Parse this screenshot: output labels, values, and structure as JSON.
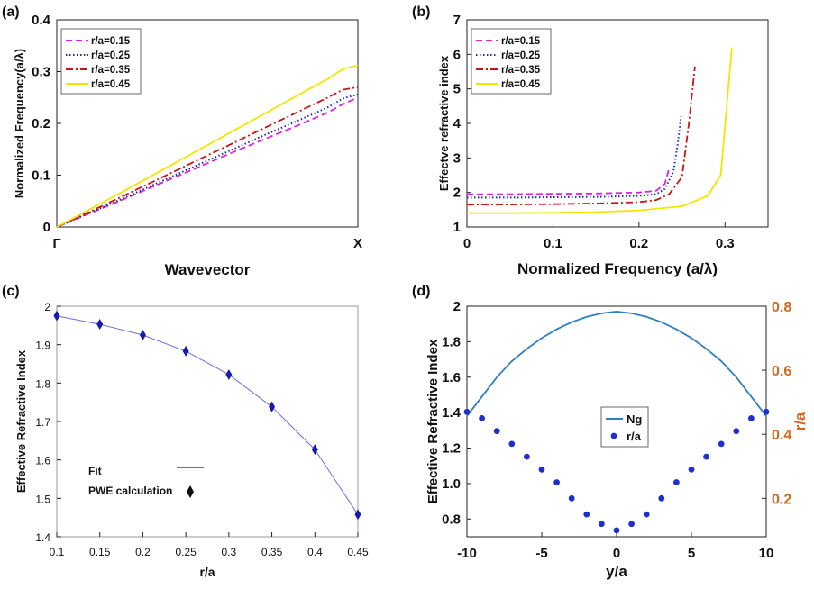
{
  "chart_data": [
    {
      "panel_label": "(a)",
      "type": "line",
      "xlabel": "Wavevector",
      "ylabel": "Normalized Frequency(a/λ)",
      "xlim": [
        0,
        1
      ],
      "ylim": [
        0,
        0.4
      ],
      "x_tick_labels": [
        "Γ",
        "X"
      ],
      "y_ticks": [
        "0",
        "0.1",
        "0.2",
        "0.3",
        "0.4"
      ],
      "legend_position": "top-left",
      "series": [
        {
          "name": "r/a=0.15",
          "color": "#e020e0",
          "style": "dashed",
          "x": [
            0,
            0.1,
            0.2,
            0.3,
            0.4,
            0.5,
            0.6,
            0.7,
            0.8,
            0.9,
            0.95,
            1.0
          ],
          "y": [
            0,
            0.024,
            0.048,
            0.073,
            0.098,
            0.123,
            0.148,
            0.172,
            0.196,
            0.221,
            0.237,
            0.25
          ]
        },
        {
          "name": "r/a=0.25",
          "color": "#1c2fa8",
          "style": "dotted",
          "x": [
            0,
            0.1,
            0.2,
            0.3,
            0.4,
            0.5,
            0.6,
            0.7,
            0.8,
            0.9,
            0.95,
            1.0
          ],
          "y": [
            0,
            0.025,
            0.05,
            0.076,
            0.102,
            0.128,
            0.154,
            0.18,
            0.205,
            0.231,
            0.248,
            0.256
          ]
        },
        {
          "name": "r/a=0.35",
          "color": "#cc1414",
          "style": "dashdot",
          "x": [
            0,
            0.1,
            0.2,
            0.3,
            0.4,
            0.5,
            0.6,
            0.7,
            0.8,
            0.9,
            0.95,
            1.0
          ],
          "y": [
            0,
            0.027,
            0.054,
            0.082,
            0.11,
            0.138,
            0.166,
            0.194,
            0.222,
            0.25,
            0.265,
            0.27
          ]
        },
        {
          "name": "r/a=0.45",
          "color": "#f2e600",
          "style": "solid",
          "x": [
            0,
            0.1,
            0.2,
            0.3,
            0.4,
            0.5,
            0.6,
            0.7,
            0.8,
            0.9,
            0.95,
            1.0
          ],
          "y": [
            0,
            0.031,
            0.062,
            0.094,
            0.126,
            0.158,
            0.19,
            0.222,
            0.254,
            0.286,
            0.305,
            0.312
          ]
        }
      ]
    },
    {
      "panel_label": "(b)",
      "type": "line",
      "xlabel": "Normalized Frequency (a/λ)",
      "ylabel": "Effectve refractive index",
      "xlim": [
        0,
        0.35
      ],
      "ylim": [
        1,
        7
      ],
      "x_ticks": [
        "0",
        "0.1",
        "0.2",
        "0.3"
      ],
      "y_ticks": [
        "1",
        "2",
        "3",
        "4",
        "5",
        "6",
        "7"
      ],
      "legend_position": "top-left",
      "series": [
        {
          "name": "r/a=0.15",
          "color": "#e020e0",
          "style": "dashed",
          "x": [
            0,
            0.05,
            0.1,
            0.15,
            0.2,
            0.22,
            0.23,
            0.235
          ],
          "y": [
            1.95,
            1.95,
            1.96,
            1.97,
            2.0,
            2.05,
            2.25,
            2.7
          ]
        },
        {
          "name": "r/a=0.25",
          "color": "#1c2fa8",
          "style": "dotted",
          "x": [
            0,
            0.05,
            0.1,
            0.15,
            0.2,
            0.22,
            0.23,
            0.24,
            0.245,
            0.249
          ],
          "y": [
            1.85,
            1.85,
            1.86,
            1.87,
            1.9,
            1.95,
            2.1,
            2.6,
            3.4,
            4.2
          ]
        },
        {
          "name": "r/a=0.35",
          "color": "#cc1414",
          "style": "dashdot",
          "x": [
            0,
            0.05,
            0.1,
            0.15,
            0.2,
            0.22,
            0.235,
            0.25,
            0.258,
            0.265
          ],
          "y": [
            1.65,
            1.65,
            1.66,
            1.68,
            1.72,
            1.78,
            1.95,
            2.45,
            4.0,
            5.65
          ]
        },
        {
          "name": "r/a=0.45",
          "color": "#f2e600",
          "style": "solid",
          "x": [
            0,
            0.05,
            0.1,
            0.15,
            0.2,
            0.25,
            0.28,
            0.295,
            0.302,
            0.308
          ],
          "y": [
            1.4,
            1.4,
            1.41,
            1.43,
            1.48,
            1.6,
            1.9,
            2.5,
            4.5,
            6.2
          ]
        }
      ]
    },
    {
      "panel_label": "(c)",
      "type": "line",
      "xlabel": "r/a",
      "ylabel": "Effective Refractive Index",
      "xlim": [
        0.1,
        0.45
      ],
      "ylim": [
        1.4,
        2.0
      ],
      "x_ticks": [
        "0.1",
        "0.15",
        "0.2",
        "0.25",
        "0.3",
        "0.35",
        "0.4",
        "0.45"
      ],
      "y_ticks": [
        "1.4",
        "1.5",
        "1.6",
        "1.7",
        "1.8",
        "1.9",
        "2"
      ],
      "legend_position": "bottom-left",
      "legend": [
        {
          "label": "Fit",
          "marker": "line"
        },
        {
          "label": "PWE calculation",
          "marker": "diamond"
        }
      ],
      "series": [
        {
          "name": "Fit",
          "color": "#6b6fe0",
          "style": "solid",
          "x": [
            0.1,
            0.15,
            0.2,
            0.25,
            0.3,
            0.35,
            0.4,
            0.45
          ],
          "y": [
            1.975,
            1.953,
            1.925,
            1.883,
            1.822,
            1.738,
            1.627,
            1.458
          ]
        },
        {
          "name": "PWE calculation",
          "color": "#1a1aa8",
          "style": "diamond",
          "x": [
            0.1,
            0.15,
            0.2,
            0.25,
            0.3,
            0.35,
            0.4,
            0.45
          ],
          "y": [
            1.975,
            1.953,
            1.925,
            1.883,
            1.822,
            1.738,
            1.627,
            1.458
          ]
        }
      ]
    },
    {
      "panel_label": "(d)",
      "type": "line",
      "xlabel": "y/a",
      "ylabel": "Effective Refractive Index",
      "y2label": "r/a",
      "xlim": [
        -10,
        10
      ],
      "ylim": [
        0.7,
        2.0
      ],
      "y2lim": [
        0.08,
        0.8
      ],
      "x_ticks": [
        "-10",
        "-5",
        "0",
        "5",
        "10"
      ],
      "y_ticks": [
        "0.8",
        "1.0",
        "1.2",
        "1.4",
        "1.6",
        "1.8",
        "2"
      ],
      "y2_ticks": [
        "0.2",
        "0.4",
        "0.6",
        "0.8"
      ],
      "legend_position": "center",
      "series": [
        {
          "name": "Ng",
          "axis": "left",
          "color": "#2f7fc0",
          "style": "solid",
          "x": [
            -10,
            -9,
            -8,
            -7,
            -6,
            -5,
            -4,
            -3,
            -2,
            -1,
            0,
            1,
            2,
            3,
            4,
            5,
            6,
            7,
            8,
            9,
            10
          ],
          "y": [
            1.38,
            1.49,
            1.6,
            1.69,
            1.76,
            1.82,
            1.87,
            1.91,
            1.94,
            1.96,
            1.97,
            1.96,
            1.94,
            1.91,
            1.87,
            1.82,
            1.76,
            1.69,
            1.6,
            1.49,
            1.38
          ]
        },
        {
          "name": "r/a",
          "axis": "right",
          "color": "#1f2fcc",
          "style": "dot",
          "x": [
            -10,
            -9,
            -8,
            -7,
            -6,
            -5,
            -4,
            -3,
            -2,
            -1,
            0,
            1,
            2,
            3,
            4,
            5,
            6,
            7,
            8,
            9,
            10
          ],
          "y": [
            0.47,
            0.45,
            0.41,
            0.37,
            0.33,
            0.29,
            0.25,
            0.2,
            0.15,
            0.12,
            0.1,
            0.12,
            0.15,
            0.2,
            0.25,
            0.29,
            0.33,
            0.37,
            0.41,
            0.45,
            0.47
          ]
        }
      ]
    }
  ]
}
